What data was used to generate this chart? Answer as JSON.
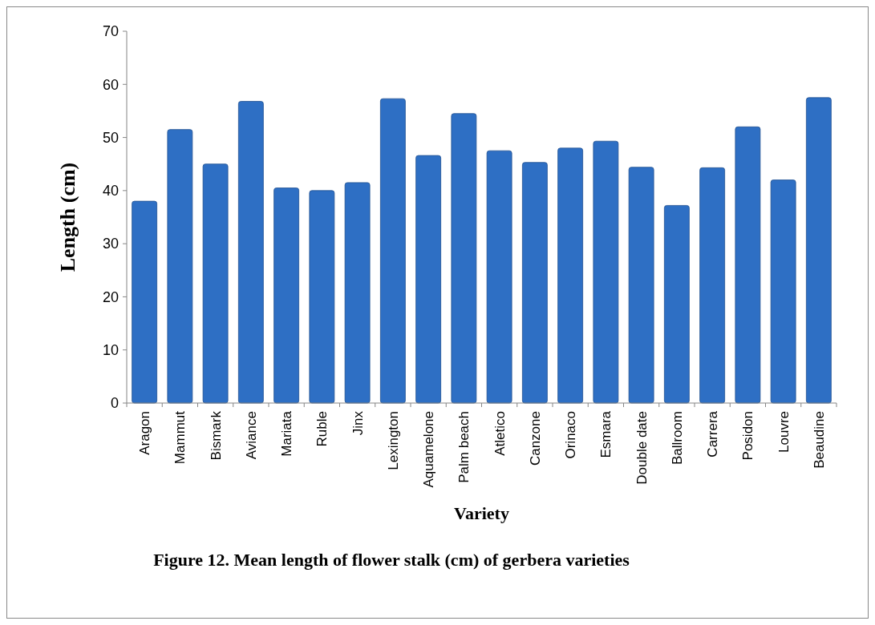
{
  "chart_data": {
    "type": "bar",
    "xlabel": "Variety",
    "ylabel": "Length (cm)",
    "categories": [
      "Aragon",
      "Mammut",
      "Bismark",
      "Aviance",
      "Mariata",
      "Ruble",
      "Jinx",
      "Lexington",
      "Aquamelone",
      "Palm beach",
      "Atletico",
      "Canzone",
      "Orinaco",
      "Esmara",
      "Double date",
      "Ballroom",
      "Carrera",
      "Posidon",
      "Louvre",
      "Beaudine"
    ],
    "values": [
      38,
      51.5,
      45,
      56.8,
      40.5,
      40,
      41.5,
      57.3,
      46.6,
      54.5,
      47.5,
      45.3,
      48,
      49.3,
      44.4,
      37.2,
      44.3,
      52,
      42,
      57.5
    ],
    "color": "#2e6fc4",
    "ylim": [
      0,
      70
    ],
    "yticks": [
      0,
      10,
      20,
      30,
      40,
      50,
      60,
      70
    ],
    "grid": false,
    "annotations": [
      "Figure 12. Mean length of flower stalk (cm) of gerbera varieties"
    ]
  }
}
